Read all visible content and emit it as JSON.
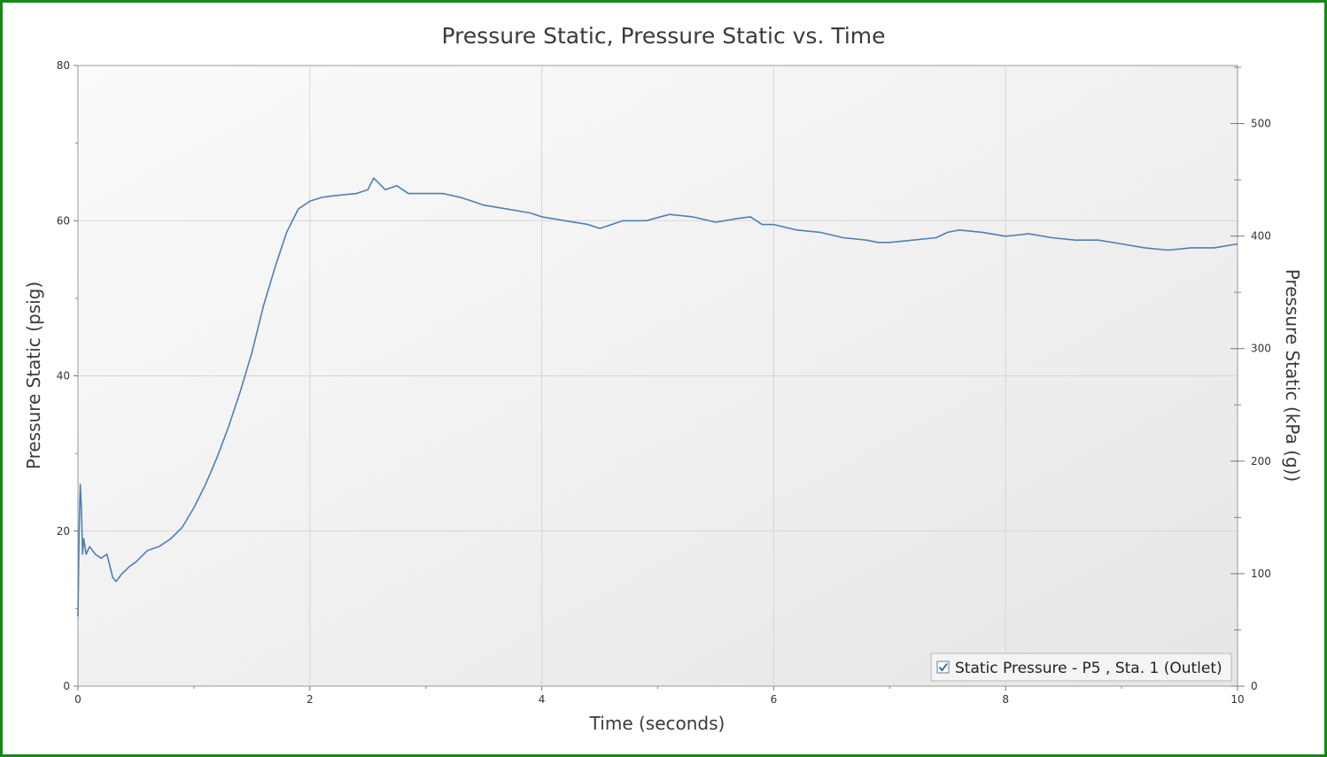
{
  "chart_data": {
    "type": "line",
    "title": "Pressure Static, Pressure Static vs. Time",
    "xlabel": "Time (seconds)",
    "ylabel": "Pressure Static (psig)",
    "y2label": "Pressure Static (kPa (g))",
    "xlim": [
      0,
      10
    ],
    "ylim": [
      0,
      80
    ],
    "y2lim": [
      0,
      551.6
    ],
    "x_ticks": [
      "0",
      "2",
      "4",
      "6",
      "8",
      "10"
    ],
    "y_ticks": [
      "0",
      "20",
      "40",
      "60",
      "80"
    ],
    "y2_ticks": [
      "0",
      "100",
      "200",
      "300",
      "400",
      "500"
    ],
    "grid": true,
    "legend_position": "bottom-right",
    "series": [
      {
        "name": "Static Pressure - P5 , Sta. 1 (Outlet)",
        "color": "#4f7fb4",
        "x": [
          0,
          0.01,
          0.02,
          0.03,
          0.04,
          0.05,
          0.07,
          0.1,
          0.15,
          0.2,
          0.25,
          0.3,
          0.33,
          0.38,
          0.45,
          0.5,
          0.6,
          0.7,
          0.8,
          0.9,
          1.0,
          1.1,
          1.2,
          1.3,
          1.4,
          1.5,
          1.6,
          1.7,
          1.8,
          1.9,
          2.0,
          2.1,
          2.2,
          2.4,
          2.5,
          2.55,
          2.65,
          2.75,
          2.85,
          3.0,
          3.15,
          3.3,
          3.4,
          3.5,
          3.7,
          3.9,
          4.0,
          4.2,
          4.4,
          4.5,
          4.7,
          4.9,
          5.1,
          5.3,
          5.5,
          5.7,
          5.8,
          5.9,
          6.0,
          6.2,
          6.4,
          6.6,
          6.8,
          6.9,
          7.0,
          7.2,
          7.4,
          7.5,
          7.6,
          7.8,
          8.0,
          8.2,
          8.4,
          8.6,
          8.8,
          9.0,
          9.2,
          9.4,
          9.6,
          9.8,
          10.0
        ],
        "y": [
          9,
          20,
          26,
          23,
          17,
          19,
          17,
          18,
          17,
          16.5,
          17,
          14,
          13.5,
          14.5,
          15.5,
          16,
          17.5,
          18,
          19,
          20.5,
          23,
          26,
          29.5,
          33.5,
          38,
          43,
          49,
          54,
          58.5,
          61.5,
          62.5,
          63,
          63.2,
          63.5,
          64,
          65.5,
          64,
          64.5,
          63.5,
          63.5,
          63.5,
          63,
          62.5,
          62,
          61.5,
          61,
          60.5,
          60,
          59.5,
          59,
          60,
          60,
          60.8,
          60.5,
          59.8,
          60.3,
          60.5,
          59.5,
          59.5,
          58.8,
          58.5,
          57.8,
          57.5,
          57.2,
          57.2,
          57.5,
          57.8,
          58.5,
          58.8,
          58.5,
          58,
          58.3,
          57.8,
          57.5,
          57.5,
          57,
          56.5,
          56.2,
          56.5,
          56.5,
          57
        ]
      }
    ]
  }
}
